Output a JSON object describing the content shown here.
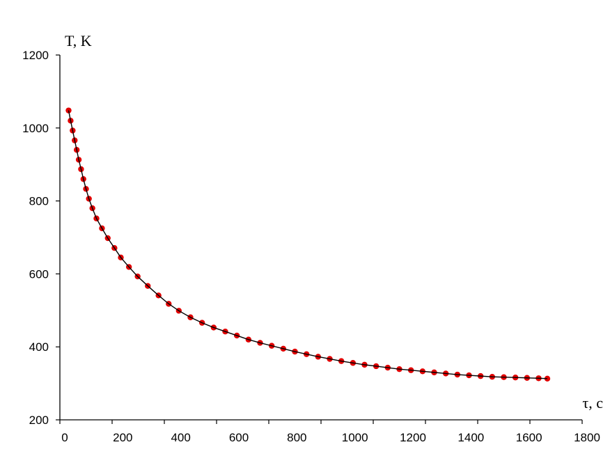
{
  "chart_data": {
    "type": "scatter",
    "title": "",
    "xlabel": "τ, с",
    "ylabel": "T, K",
    "xlim": [
      0,
      1800
    ],
    "ylim": [
      200,
      1200
    ],
    "x_ticks": [
      "0",
      "200",
      "400",
      "600",
      "800",
      "1000",
      "1200",
      "1400",
      "1600",
      "1800"
    ],
    "y_ticks": [
      "200",
      "400",
      "600",
      "800",
      "1000",
      "1200"
    ],
    "grid": false,
    "legend": "none",
    "colors": {
      "points": "#e00000",
      "line": "#000000",
      "axis": "#000000"
    },
    "series": [
      {
        "style": "markers",
        "x": [
          30,
          37,
          44,
          51,
          58,
          65,
          73,
          81,
          90,
          100,
          112,
          126,
          145,
          165,
          188,
          210,
          238,
          268,
          303,
          340,
          375,
          410,
          450,
          490,
          530,
          570,
          610,
          650,
          690,
          730,
          770,
          810,
          850,
          890,
          930,
          970,
          1010,
          1050,
          1090,
          1130,
          1170,
          1210,
          1250,
          1290,
          1330,
          1370,
          1410,
          1450,
          1490,
          1530,
          1570,
          1610,
          1650,
          1680
        ],
        "y": [
          1048,
          1020,
          993,
          966,
          940,
          913,
          887,
          860,
          833,
          806,
          780,
          752,
          725,
          698,
          671,
          645,
          619,
          593,
          567,
          541,
          518,
          499,
          481,
          466,
          453,
          442,
          431,
          420,
          411,
          403,
          395,
          387,
          380,
          373,
          367,
          361,
          356,
          351,
          347,
          343,
          339,
          336,
          333,
          330,
          327,
          324,
          322,
          320,
          318,
          317,
          316,
          315,
          314,
          313
        ]
      },
      {
        "style": "line",
        "x": [
          30,
          37,
          44,
          51,
          58,
          65,
          73,
          81,
          90,
          100,
          112,
          126,
          145,
          165,
          188,
          210,
          238,
          268,
          303,
          340,
          375,
          410,
          450,
          490,
          530,
          570,
          610,
          650,
          690,
          730,
          770,
          810,
          850,
          890,
          930,
          970,
          1010,
          1050,
          1090,
          1130,
          1170,
          1210,
          1250,
          1290,
          1330,
          1370,
          1410,
          1450,
          1490,
          1530,
          1570,
          1610,
          1650,
          1680
        ],
        "y": [
          1048,
          1020,
          993,
          966,
          940,
          913,
          887,
          860,
          833,
          806,
          780,
          752,
          725,
          698,
          671,
          645,
          619,
          593,
          567,
          541,
          518,
          499,
          481,
          466,
          453,
          442,
          431,
          420,
          411,
          403,
          395,
          387,
          380,
          373,
          367,
          361,
          356,
          351,
          347,
          343,
          339,
          336,
          333,
          330,
          327,
          324,
          322,
          320,
          318,
          317,
          316,
          315,
          314,
          313
        ]
      }
    ]
  }
}
